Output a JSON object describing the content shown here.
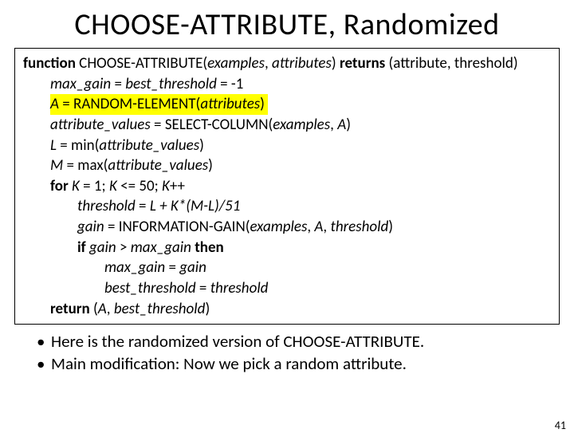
{
  "title": "CHOOSE-ATTRIBUTE, Randomized",
  "code": {
    "line1_pre": "function",
    "line1_mid1": " CHOOSE-ATTRIBUTE(",
    "line1_it1": "examples",
    "line1_mid2": ", ",
    "line1_it2": "attributes",
    "line1_mid3": ") ",
    "line1_kw2": "returns",
    "line1_tail": " (attribute, threshold)",
    "line2_it1": "max_gain",
    "line2_mid": " = ",
    "line2_it2": "best_threshold",
    "line2_tail": " = -1",
    "line3_it1": "A",
    "line3_mid": " = RANDOM-ELEMENT(",
    "line3_it2": "attributes",
    "line3_tail": ")",
    "line4_it1": "attribute_values",
    "line4_mid": " = SELECT-COLUMN(",
    "line4_it2": "examples",
    "line4_sep": ", ",
    "line4_it3": "A",
    "line4_tail": ")",
    "line5_it1": "L",
    "line5_mid": " = min(",
    "line5_it2": "attribute_values",
    "line5_tail": ")",
    "line6_it1": "M",
    "line6_mid": " = max(",
    "line6_it2": "attribute_values",
    "line6_tail": ")",
    "line7_kw": "for",
    "line7_sp": " ",
    "line7_it1": "K",
    "line7_mid1": " = 1; ",
    "line7_it2": "K",
    "line7_mid2": " <= 50; ",
    "line7_it3": "K",
    "line7_tail": "++",
    "line8_it1": "threshold",
    "line8_mid": " = ",
    "line8_it2": "L + K*(M-L)/51",
    "line9_it1": "gain",
    "line9_mid": " = INFORMATION-GAIN(",
    "line9_it2": "examples",
    "line9_sep1": ", ",
    "line9_it3": "A",
    "line9_sep2": ", ",
    "line9_it4": "threshold",
    "line9_tail": ")",
    "line10_kw1": "if",
    "line10_sp1": " ",
    "line10_it1": "gain",
    "line10_mid": " > ",
    "line10_it2": "max_gain",
    "line10_sp2": " ",
    "line10_kw2": "then",
    "line11_it1": "max_gain",
    "line11_mid": " = ",
    "line11_it2": "gain",
    "line12_it1": "best_threshold",
    "line12_mid": " = ",
    "line12_it2": "threshold",
    "line13_kw": "return",
    "line13_mid": " (",
    "line13_it1": "A",
    "line13_sep": ", ",
    "line13_it2": "best_threshold",
    "line13_tail": ")"
  },
  "bullets": [
    "Here is the randomized version of CHOOSE-ATTRIBUTE.",
    "Main modification: Now we pick a random attribute."
  ],
  "pageNumber": "41",
  "colors": {
    "highlight": "#ffff00",
    "border": "#000000",
    "text": "#000000",
    "background": "#ffffff"
  },
  "typography": {
    "title_fontsize": 38,
    "code_fontsize": 19,
    "bullet_fontsize": 21,
    "pagenum_fontsize": 14,
    "font_family": "Calibri"
  }
}
